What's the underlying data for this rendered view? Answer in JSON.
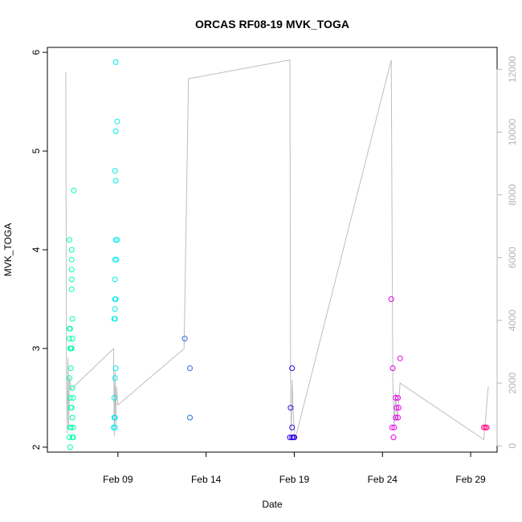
{
  "chart_data": {
    "type": "scatter",
    "title": "ORCAS RF08-19 MVK_TOGA",
    "xlabel": "Date",
    "ylabel": "MVK_TOGA",
    "x_unit": "days",
    "x_ticks": [
      {
        "value": "2016-02-09",
        "label": "Feb 09"
      },
      {
        "value": "2016-02-14",
        "label": "Feb 14"
      },
      {
        "value": "2016-02-19",
        "label": "Feb 19"
      },
      {
        "value": "2016-02-24",
        "label": "Feb 24"
      },
      {
        "value": "2016-02-29",
        "label": "Feb 29"
      }
    ],
    "xlim": [
      "2016-02-05T00:00",
      "2016-03-01T12:00"
    ],
    "ylim": [
      1.95,
      6.05
    ],
    "y_ticks": [
      2,
      3,
      4,
      5,
      6
    ],
    "y2lim": [
      -200,
      12700
    ],
    "y2_ticks": [
      0,
      2000,
      4000,
      6000,
      8000,
      10000,
      12000
    ],
    "grid": false,
    "series": [
      {
        "color": "#00ffb0",
        "points": [
          [
            "2016-02-06T06:00",
            4.1
          ],
          [
            "2016-02-06T06:00",
            3.2
          ],
          [
            "2016-02-06T06:00",
            3.1
          ],
          [
            "2016-02-06T07:00",
            3.0
          ],
          [
            "2016-02-06T06:00",
            2.7
          ],
          [
            "2016-02-06T07:00",
            2.5
          ],
          [
            "2016-02-06T07:00",
            2.2
          ],
          [
            "2016-02-06T06:00",
            2.1
          ],
          [
            "2016-02-06T07:00",
            2.0
          ],
          [
            "2016-02-06T08:00",
            2.8
          ],
          [
            "2016-02-06T08:00",
            2.4
          ],
          [
            "2016-02-06T08:00",
            2.2
          ],
          [
            "2016-02-06T09:00",
            4.0
          ],
          [
            "2016-02-06T09:00",
            3.9
          ],
          [
            "2016-02-06T09:00",
            3.8
          ],
          [
            "2016-02-06T09:00",
            3.7
          ],
          [
            "2016-02-06T09:00",
            3.6
          ],
          [
            "2016-02-06T10:00",
            3.3
          ],
          [
            "2016-02-06T10:00",
            3.1
          ],
          [
            "2016-02-06T10:00",
            2.6
          ],
          [
            "2016-02-06T10:00",
            2.3
          ],
          [
            "2016-02-06T10:00",
            2.1
          ],
          [
            "2016-02-06T11:00",
            2.2
          ],
          [
            "2016-02-06T11:00",
            2.1
          ],
          [
            "2016-02-06T12:00",
            4.6
          ],
          [
            "2016-02-06T11:00",
            2.5
          ],
          [
            "2016-02-06T09:00",
            3.0
          ],
          [
            "2016-02-06T08:00",
            3.0
          ],
          [
            "2016-02-06T07:00",
            3.2
          ],
          [
            "2016-02-06T09:00",
            2.4
          ]
        ]
      },
      {
        "color": "#00eaea",
        "points": [
          [
            "2016-02-08T21:00",
            5.9
          ],
          [
            "2016-02-08T23:00",
            5.3
          ],
          [
            "2016-02-08T21:00",
            5.2
          ],
          [
            "2016-02-08T20:00",
            4.8
          ],
          [
            "2016-02-08T21:00",
            4.7
          ],
          [
            "2016-02-08T21:00",
            4.1
          ],
          [
            "2016-02-08T23:00",
            4.1
          ],
          [
            "2016-02-08T20:00",
            3.9
          ],
          [
            "2016-02-08T22:00",
            3.9
          ],
          [
            "2016-02-08T20:00",
            3.7
          ],
          [
            "2016-02-08T20:00",
            3.5
          ],
          [
            "2016-02-08T21:00",
            3.5
          ],
          [
            "2016-02-08T20:00",
            3.4
          ],
          [
            "2016-02-08T19:00",
            3.3
          ],
          [
            "2016-02-08T20:00",
            3.3
          ],
          [
            "2016-02-08T21:00",
            2.8
          ],
          [
            "2016-02-08T20:00",
            2.7
          ],
          [
            "2016-02-08T19:00",
            2.5
          ],
          [
            "2016-02-08T19:00",
            2.3
          ],
          [
            "2016-02-08T20:00",
            2.3
          ],
          [
            "2016-02-08T18:00",
            2.2
          ],
          [
            "2016-02-08T20:00",
            2.2
          ]
        ]
      },
      {
        "color": "#2a6fd6",
        "points": [
          [
            "2016-02-12T19:00",
            3.1
          ],
          [
            "2016-02-13T02:00",
            2.8
          ],
          [
            "2016-02-13T02:00",
            2.3
          ]
        ]
      },
      {
        "color": "#2d00e6",
        "points": [
          [
            "2016-02-18T21:00",
            2.8
          ],
          [
            "2016-02-18T19:00",
            2.4
          ],
          [
            "2016-02-18T21:00",
            2.2
          ],
          [
            "2016-02-18T18:00",
            2.1
          ],
          [
            "2016-02-18T21:00",
            2.1
          ],
          [
            "2016-02-18T23:00",
            2.1
          ],
          [
            "2016-02-19T00:00",
            2.1
          ]
        ]
      },
      {
        "color": "#e600e6",
        "points": [
          [
            "2016-02-24T12:00",
            3.5
          ],
          [
            "2016-02-25T00:00",
            2.9
          ],
          [
            "2016-02-24T14:00",
            2.8
          ],
          [
            "2016-02-24T18:00",
            2.5
          ],
          [
            "2016-02-24T21:00",
            2.5
          ],
          [
            "2016-02-24T22:00",
            2.4
          ],
          [
            "2016-02-24T19:00",
            2.4
          ],
          [
            "2016-02-24T18:00",
            2.3
          ],
          [
            "2016-02-24T21:00",
            2.3
          ],
          [
            "2016-02-24T13:00",
            2.2
          ],
          [
            "2016-02-24T16:00",
            2.2
          ],
          [
            "2016-02-24T15:00",
            2.1
          ]
        ]
      },
      {
        "color": "#ff0080",
        "points": [
          [
            "2016-02-29T18:00",
            2.2
          ],
          [
            "2016-02-29T20:00",
            2.2
          ],
          [
            "2016-02-29T22:00",
            2.2
          ]
        ]
      }
    ],
    "altitude_trace": {
      "axis": "right",
      "color": "#bebebe",
      "points": [
        [
          "2016-02-06T01:00",
          11900
        ],
        [
          "2016-02-06T02:00",
          2000
        ],
        [
          "2016-02-06T03:00",
          400
        ],
        [
          "2016-02-06T04:00",
          2800
        ],
        [
          "2016-02-06T05:00",
          600
        ],
        [
          "2016-02-06T06:00",
          2200
        ],
        [
          "2016-02-06T08:00",
          1800
        ],
        [
          "2016-02-08T18:00",
          3100
        ],
        [
          "2016-02-08T19:00",
          300
        ],
        [
          "2016-02-08T20:00",
          2400
        ],
        [
          "2016-02-08T21:00",
          600
        ],
        [
          "2016-02-08T22:00",
          1900
        ],
        [
          "2016-02-09T00:00",
          1300
        ],
        [
          "2016-02-12T18:00",
          3100
        ],
        [
          "2016-02-13T00:00",
          11700
        ],
        [
          "2016-02-18T18:00",
          12300
        ],
        [
          "2016-02-18T19:00",
          1500
        ],
        [
          "2016-02-18T20:00",
          400
        ],
        [
          "2016-02-18T21:00",
          2100
        ],
        [
          "2016-02-18T23:00",
          900
        ],
        [
          "2016-02-19T01:00",
          200
        ],
        [
          "2016-02-24T12:00",
          12300
        ],
        [
          "2016-02-24T14:00",
          2100
        ],
        [
          "2016-02-24T16:00",
          600
        ],
        [
          "2016-02-24T18:00",
          1700
        ],
        [
          "2016-02-24T20:00",
          800
        ],
        [
          "2016-02-25T00:00",
          2000
        ],
        [
          "2016-02-29T18:00",
          200
        ],
        [
          "2016-03-01T00:00",
          1900
        ]
      ]
    }
  }
}
